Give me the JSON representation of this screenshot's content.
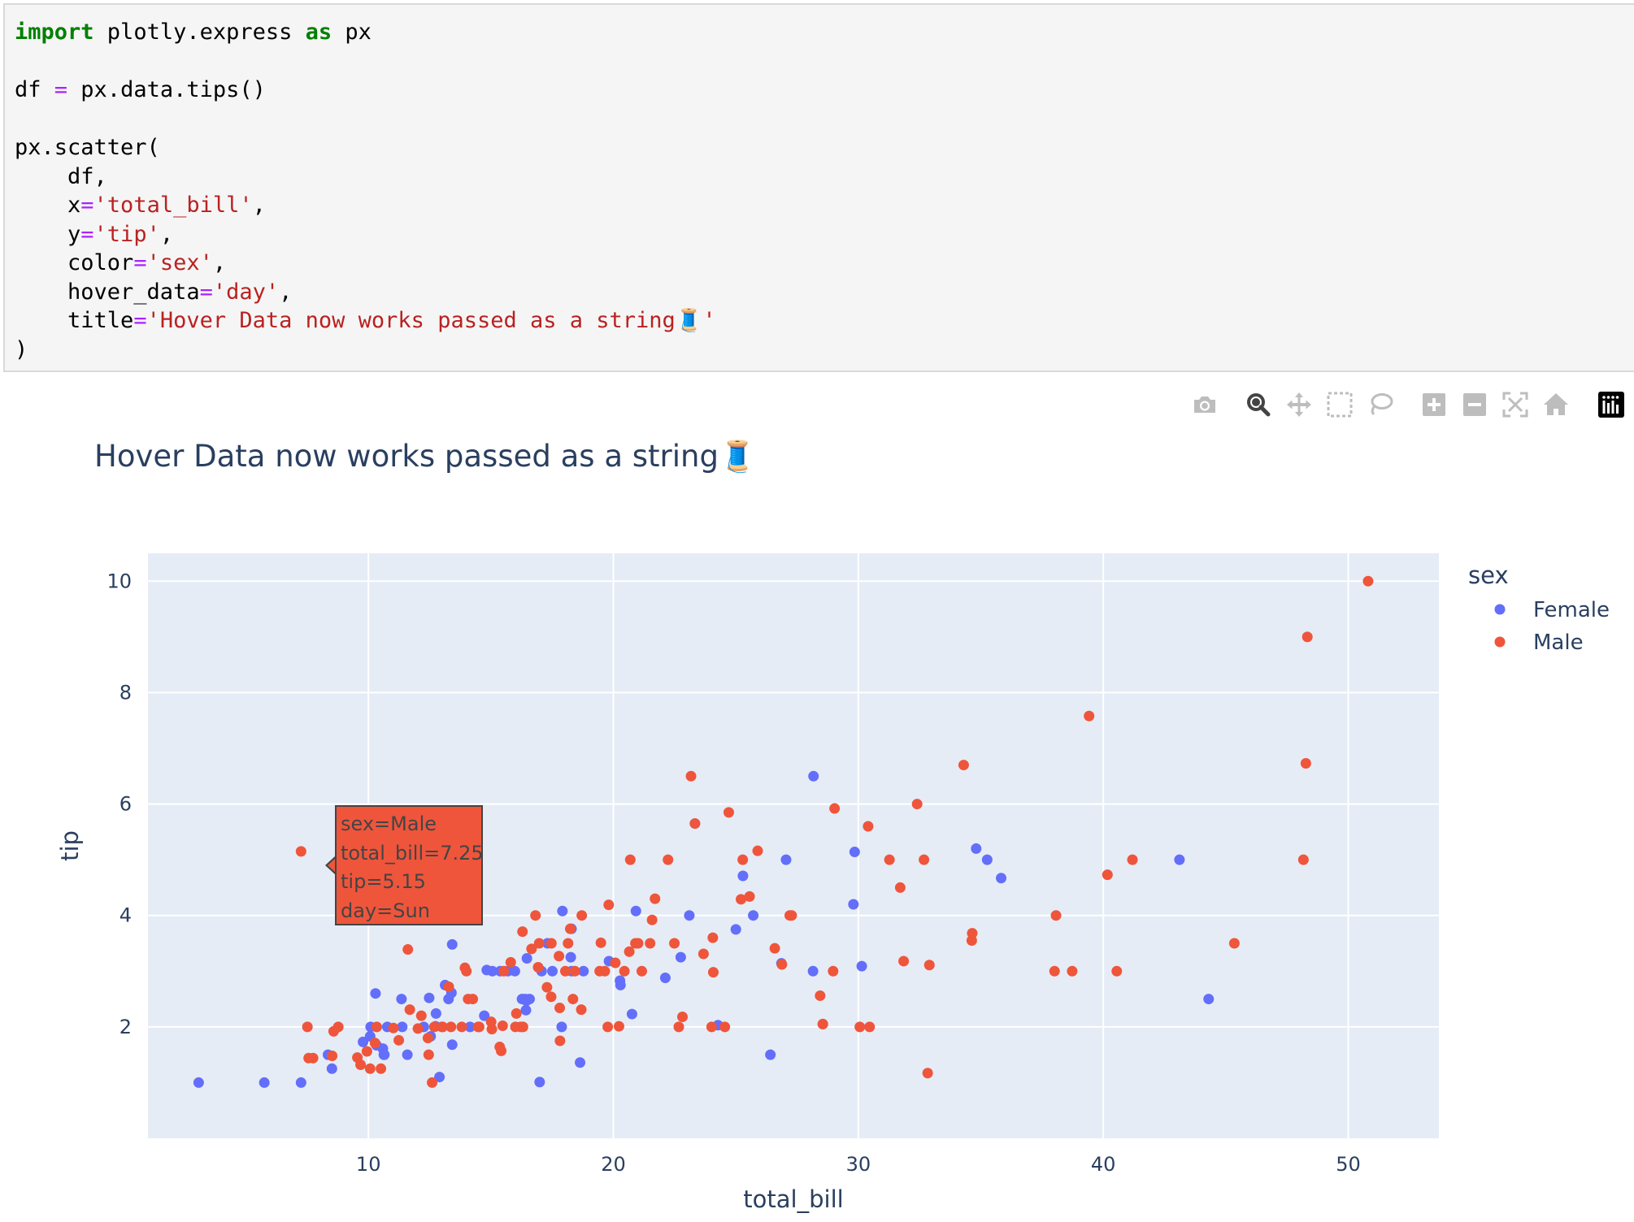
{
  "code": {
    "line1": {
      "kw1": "import",
      "mid": " plotly.express ",
      "kw2": "as",
      "tail": " px"
    },
    "line3": {
      "head": "df ",
      "op": "=",
      "tail": " px.data.tips()"
    },
    "line5": "px.scatter(",
    "line6": "    df,",
    "line7": {
      "head": "    x",
      "op": "=",
      "str": "'total_bill'",
      "tail": ","
    },
    "line8": {
      "head": "    y",
      "op": "=",
      "str": "'tip'",
      "tail": ","
    },
    "line9": {
      "head": "    color",
      "op": "=",
      "str": "'sex'",
      "tail": ","
    },
    "line10": {
      "head": "    hover_data",
      "op": "=",
      "str": "'day'",
      "tail": ","
    },
    "line11": {
      "head": "    title",
      "op": "=",
      "str": "'Hover Data now works passed as a string🧵'",
      "tail": ""
    },
    "line12": ")"
  },
  "modebar": [
    {
      "icon": "camera-icon",
      "active": false
    },
    {
      "icon": "zoom-icon",
      "active": true
    },
    {
      "icon": "pan-icon",
      "active": false
    },
    {
      "icon": "box-select-icon",
      "active": false
    },
    {
      "icon": "lasso-select-icon",
      "active": false
    },
    {
      "icon": "zoom-in-icon",
      "active": false
    },
    {
      "icon": "zoom-out-icon",
      "active": false
    },
    {
      "icon": "autoscale-icon",
      "active": false
    },
    {
      "icon": "reset-axes-icon",
      "active": false
    },
    {
      "icon": "plotly-logo-icon",
      "active": false
    }
  ],
  "hover": {
    "line1": "sex=Male",
    "line2": "total_bill=7.25",
    "line3": "tip=5.15",
    "line4": "day=Sun"
  },
  "chart_data": {
    "type": "scatter",
    "title": "Hover Data now works passed as a string🧵",
    "xlabel": "total_bill",
    "ylabel": "tip",
    "xlim": [
      1.0,
      53.7
    ],
    "ylim": [
      0.0,
      10.5
    ],
    "xticks": [
      10,
      20,
      30,
      40,
      50
    ],
    "yticks": [
      2,
      4,
      6,
      8,
      10
    ],
    "grid": true,
    "legend": {
      "title": "sex",
      "placement": "top-right"
    },
    "series": [
      {
        "name": "Female",
        "color": "#636efa",
        "points": [
          [
            3.07,
            1.0
          ],
          [
            5.75,
            1.0
          ],
          [
            7.25,
            1.0
          ],
          [
            8.35,
            1.5
          ],
          [
            8.51,
            1.25
          ],
          [
            9.6,
            4.0
          ],
          [
            9.78,
            1.73
          ],
          [
            10.07,
            1.83
          ],
          [
            10.09,
            2.0
          ],
          [
            10.29,
            2.6
          ],
          [
            10.33,
            1.67
          ],
          [
            10.59,
            1.61
          ],
          [
            10.63,
            1.5
          ],
          [
            10.65,
            1.5
          ],
          [
            10.77,
            2.0
          ],
          [
            11.35,
            2.5
          ],
          [
            11.38,
            2.0
          ],
          [
            11.59,
            1.5
          ],
          [
            12.26,
            2.0
          ],
          [
            12.48,
            2.52
          ],
          [
            12.54,
            1.83
          ],
          [
            12.74,
            2.01
          ],
          [
            12.76,
            2.24
          ],
          [
            12.9,
            1.1
          ],
          [
            13.13,
            2.75
          ],
          [
            13.27,
            2.5
          ],
          [
            13.39,
            2.61
          ],
          [
            13.42,
            3.48
          ],
          [
            13.42,
            1.68
          ],
          [
            14.15,
            2.0
          ],
          [
            14.31,
            4.0
          ],
          [
            14.73,
            2.2
          ],
          [
            14.83,
            3.02
          ],
          [
            15.06,
            3.0
          ],
          [
            15.38,
            3.0
          ],
          [
            15.69,
            3.0
          ],
          [
            15.98,
            3.0
          ],
          [
            16.27,
            2.5
          ],
          [
            16.4,
            2.5
          ],
          [
            16.43,
            2.3
          ],
          [
            16.45,
            2.47
          ],
          [
            16.47,
            3.23
          ],
          [
            16.58,
            2.5
          ],
          [
            16.99,
            1.01
          ],
          [
            17.07,
            3.0
          ],
          [
            17.31,
            3.5
          ],
          [
            17.51,
            3.0
          ],
          [
            17.89,
            2.0
          ],
          [
            17.92,
            4.08
          ],
          [
            18.26,
            3.25
          ],
          [
            18.29,
            3.76
          ],
          [
            18.29,
            3.0
          ],
          [
            18.64,
            1.36
          ],
          [
            18.78,
            3.0
          ],
          [
            19.82,
            3.18
          ],
          [
            20.27,
            2.83
          ],
          [
            20.29,
            2.75
          ],
          [
            20.76,
            2.23
          ],
          [
            20.92,
            4.08
          ],
          [
            22.12,
            2.88
          ],
          [
            22.75,
            3.25
          ],
          [
            23.1,
            4.0
          ],
          [
            23.33,
            5.65
          ],
          [
            24.27,
            2.03
          ],
          [
            25.0,
            3.75
          ],
          [
            25.29,
            4.71
          ],
          [
            25.71,
            4.0
          ],
          [
            26.41,
            1.5
          ],
          [
            26.86,
            3.14
          ],
          [
            27.05,
            5.0
          ],
          [
            28.15,
            3.0
          ],
          [
            28.17,
            6.5
          ],
          [
            29.85,
            5.14
          ],
          [
            29.8,
            4.2
          ],
          [
            30.14,
            3.09
          ],
          [
            34.81,
            5.2
          ],
          [
            35.26,
            5.0
          ],
          [
            35.83,
            4.67
          ],
          [
            43.11,
            5.0
          ],
          [
            44.3,
            2.5
          ]
        ]
      },
      {
        "name": "Male",
        "color": "#ef553b",
        "points": [
          [
            7.25,
            5.15
          ],
          [
            7.51,
            2.0
          ],
          [
            7.56,
            1.44
          ],
          [
            7.74,
            1.44
          ],
          [
            8.52,
            1.48
          ],
          [
            8.58,
            1.92
          ],
          [
            8.77,
            2.0
          ],
          [
            9.55,
            1.45
          ],
          [
            9.68,
            1.32
          ],
          [
            9.94,
            1.56
          ],
          [
            10.07,
            1.25
          ],
          [
            10.27,
            1.71
          ],
          [
            10.34,
            2.0
          ],
          [
            10.51,
            1.25
          ],
          [
            11.02,
            1.98
          ],
          [
            11.24,
            1.76
          ],
          [
            11.61,
            3.39
          ],
          [
            11.69,
            2.31
          ],
          [
            12.02,
            1.97
          ],
          [
            12.16,
            2.2
          ],
          [
            12.43,
            1.8
          ],
          [
            12.6,
            1.0
          ],
          [
            12.69,
            2.0
          ],
          [
            12.46,
            1.5
          ],
          [
            13.0,
            2.0
          ],
          [
            13.03,
            2.0
          ],
          [
            13.28,
            2.72
          ],
          [
            13.37,
            2.0
          ],
          [
            13.81,
            2.0
          ],
          [
            13.94,
            3.06
          ],
          [
            14.0,
            3.0
          ],
          [
            14.07,
            2.5
          ],
          [
            14.26,
            2.5
          ],
          [
            14.48,
            2.0
          ],
          [
            14.52,
            2.0
          ],
          [
            15.01,
            2.09
          ],
          [
            15.04,
            1.96
          ],
          [
            15.36,
            1.64
          ],
          [
            15.42,
            1.57
          ],
          [
            15.48,
            2.02
          ],
          [
            15.53,
            3.0
          ],
          [
            15.81,
            3.16
          ],
          [
            16.0,
            2.0
          ],
          [
            16.21,
            2.0
          ],
          [
            16.29,
            3.71
          ],
          [
            16.31,
            2.0
          ],
          [
            16.66,
            3.4
          ],
          [
            16.82,
            4.0
          ],
          [
            16.93,
            3.07
          ],
          [
            17.29,
            2.71
          ],
          [
            17.46,
            2.54
          ],
          [
            17.47,
            3.5
          ],
          [
            17.78,
            3.27
          ],
          [
            17.81,
            2.34
          ],
          [
            17.82,
            1.75
          ],
          [
            18.04,
            3.0
          ],
          [
            18.15,
            3.5
          ],
          [
            18.24,
            3.76
          ],
          [
            18.35,
            2.5
          ],
          [
            18.43,
            3.0
          ],
          [
            18.69,
            2.31
          ],
          [
            18.71,
            4.0
          ],
          [
            19.44,
            3.0
          ],
          [
            19.49,
            3.51
          ],
          [
            19.65,
            3.0
          ],
          [
            19.77,
            2.0
          ],
          [
            19.81,
            4.19
          ],
          [
            20.08,
            3.15
          ],
          [
            20.23,
            2.01
          ],
          [
            20.45,
            3.0
          ],
          [
            20.65,
            3.35
          ],
          [
            20.69,
            5.0
          ],
          [
            20.9,
            3.5
          ],
          [
            21.01,
            3.5
          ],
          [
            21.16,
            3.0
          ],
          [
            21.5,
            3.5
          ],
          [
            21.58,
            3.92
          ],
          [
            21.7,
            4.3
          ],
          [
            22.23,
            5.0
          ],
          [
            22.49,
            3.5
          ],
          [
            22.67,
            2.0
          ],
          [
            22.82,
            2.18
          ],
          [
            23.17,
            6.5
          ],
          [
            23.33,
            5.65
          ],
          [
            23.68,
            3.31
          ],
          [
            24.01,
            2.0
          ],
          [
            24.06,
            3.6
          ],
          [
            24.08,
            2.98
          ],
          [
            24.55,
            2.0
          ],
          [
            24.71,
            5.85
          ],
          [
            25.21,
            4.29
          ],
          [
            25.28,
            5.0
          ],
          [
            25.56,
            4.34
          ],
          [
            25.89,
            5.16
          ],
          [
            26.59,
            3.41
          ],
          [
            26.88,
            3.12
          ],
          [
            27.2,
            4.0
          ],
          [
            27.28,
            4.0
          ],
          [
            28.44,
            2.56
          ],
          [
            28.55,
            2.05
          ],
          [
            28.97,
            3.0
          ],
          [
            29.03,
            5.92
          ],
          [
            30.06,
            2.0
          ],
          [
            30.4,
            5.6
          ],
          [
            31.27,
            5.0
          ],
          [
            31.71,
            4.5
          ],
          [
            31.85,
            3.18
          ],
          [
            32.4,
            6.0
          ],
          [
            32.68,
            5.0
          ],
          [
            32.9,
            3.11
          ],
          [
            32.83,
            1.17
          ],
          [
            34.3,
            6.7
          ],
          [
            34.63,
            3.55
          ],
          [
            34.65,
            3.68
          ],
          [
            38.01,
            3.0
          ],
          [
            38.07,
            4.0
          ],
          [
            38.73,
            3.0
          ],
          [
            39.42,
            7.58
          ],
          [
            40.17,
            4.73
          ],
          [
            40.55,
            3.0
          ],
          [
            41.19,
            5.0
          ],
          [
            45.35,
            3.5
          ],
          [
            48.17,
            5.0
          ],
          [
            48.27,
            6.73
          ],
          [
            48.33,
            9.0
          ],
          [
            50.81,
            10.0
          ],
          [
            30.46,
            2.0
          ],
          [
            16.97,
            3.5
          ],
          [
            28.55,
            2.05
          ],
          [
            16.04,
            2.24
          ]
        ]
      }
    ]
  }
}
